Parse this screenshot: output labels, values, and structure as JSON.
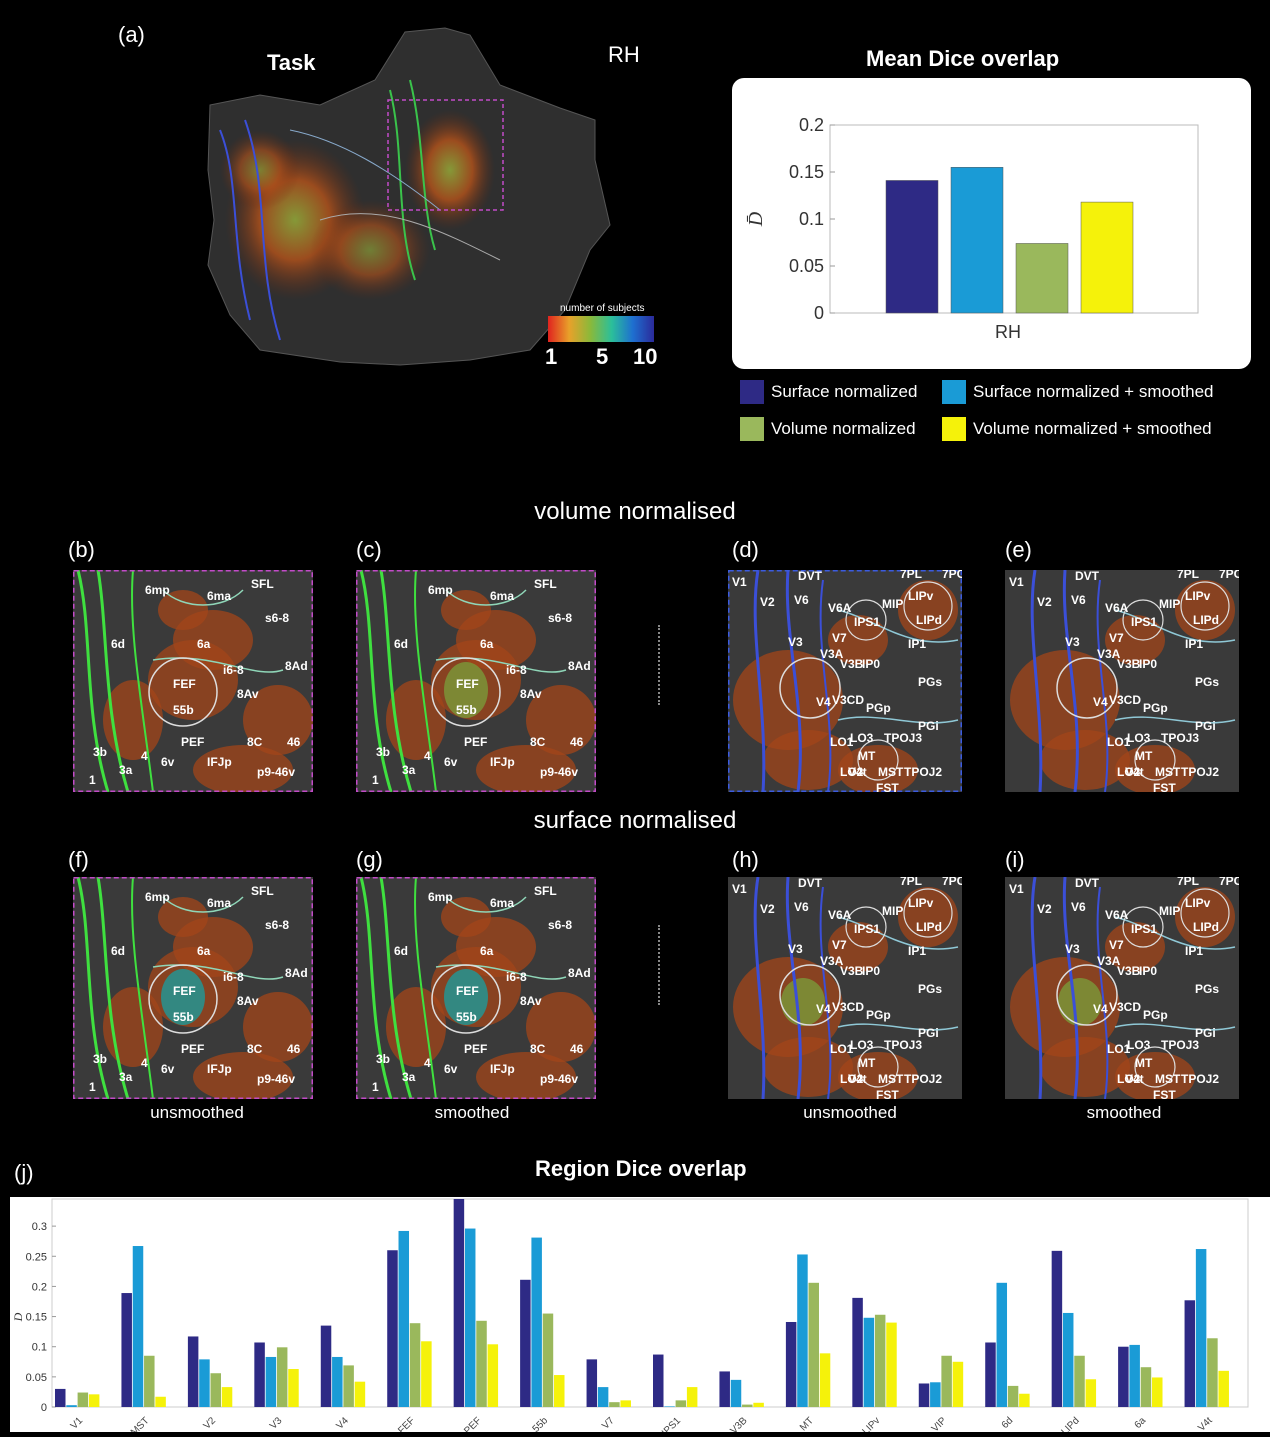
{
  "panel_labels": {
    "a": "(a)",
    "b": "(b)",
    "c": "(c)",
    "d": "(d)",
    "e": "(e)",
    "f": "(f)",
    "g": "(g)",
    "h": "(h)",
    "i": "(i)",
    "j": "(j)"
  },
  "task_title": "Task",
  "hemisphere": "RH",
  "colorbar": {
    "title": "number of subjects",
    "ticks": [
      "1",
      "5",
      "10"
    ]
  },
  "section_volume": "volume normalised",
  "section_surface": "surface normalised",
  "captions": {
    "unsmoothed": "unsmoothed",
    "smoothed": "smoothed"
  },
  "colors": {
    "surface": "#2e2a85",
    "surface_smoothed": "#1a9bd6",
    "volume": "#9ab85c",
    "volume_smoothed": "#f5f20a"
  },
  "legend": [
    "Surface normalized",
    "Surface normalized + smoothed",
    "Volume normalized",
    "Volume normalized + smoothed"
  ],
  "frontal_regions": [
    "6mp",
    "6ma",
    "SFL",
    "s6-8",
    "6d",
    "6a",
    "8Ad",
    "i6-8",
    "FEF",
    "55b",
    "8Av",
    "PEF",
    "8C",
    "46",
    "3b",
    "3a",
    "4",
    "6v",
    "IFJp",
    "p9-46v",
    "1"
  ],
  "visual_regions": [
    "V1",
    "DVT",
    "V2",
    "V6",
    "V6A",
    "7PL",
    "7PC",
    "MIP",
    "LIPv",
    "LIPd",
    "IPS1",
    "V7",
    "IP1",
    "V3",
    "V3A",
    "V3B",
    "IP0",
    "PGs",
    "V4",
    "V3CD",
    "PGp",
    "PGi",
    "LO1",
    "LO3",
    "TPOJ3",
    "MT",
    "LO2",
    "V4t",
    "MST",
    "TPOJ2",
    "FST"
  ],
  "chart_data": [
    {
      "type": "bar",
      "title": "Mean Dice overlap",
      "ylabel": "D̄",
      "categories": [
        "RH"
      ],
      "yticks": [
        "0",
        "0.05",
        "0.1",
        "0.15",
        "0.2"
      ],
      "ylim": [
        0,
        0.2
      ],
      "series": [
        {
          "name": "Surface normalized",
          "values": [
            0.141
          ]
        },
        {
          "name": "Surface normalized + smoothed",
          "values": [
            0.155
          ]
        },
        {
          "name": "Volume normalized",
          "values": [
            0.074
          ]
        },
        {
          "name": "Volume normalized + smoothed",
          "values": [
            0.118
          ]
        }
      ]
    },
    {
      "type": "bar",
      "title": "Region Dice overlap",
      "ylabel": "D",
      "yticks": [
        "0",
        "0.05",
        "0.1",
        "0.15",
        "0.2",
        "0.25",
        "0.3"
      ],
      "ylim": [
        0,
        0.345
      ],
      "categories": [
        "V1",
        "MST",
        "V2",
        "V3",
        "V4",
        "FEF",
        "PEF",
        "55b",
        "V7",
        "IPS1",
        "V3B",
        "MT",
        "LIPv",
        "VIP",
        "6d",
        "LIPd",
        "6a",
        "V4t"
      ],
      "series": [
        {
          "name": "Surface normalized",
          "values": [
            0.03,
            0.189,
            0.117,
            0.107,
            0.135,
            0.26,
            0.345,
            0.211,
            0.079,
            0.087,
            0.059,
            0.141,
            0.181,
            0.039,
            0.107,
            0.259,
            0.1,
            0.177
          ]
        },
        {
          "name": "Surface normalized + smoothed",
          "values": [
            0.003,
            0.267,
            0.079,
            0.083,
            0.083,
            0.292,
            0.296,
            0.281,
            0.033,
            0.001,
            0.045,
            0.253,
            0.148,
            0.041,
            0.206,
            0.156,
            0.103,
            0.262
          ]
        },
        {
          "name": "Volume normalized",
          "values": [
            0.024,
            0.085,
            0.056,
            0.099,
            0.069,
            0.139,
            0.143,
            0.155,
            0.008,
            0.011,
            0.004,
            0.206,
            0.153,
            0.085,
            0.035,
            0.085,
            0.066,
            0.114
          ]
        },
        {
          "name": "Volume normalized + smoothed",
          "values": [
            0.021,
            0.017,
            0.033,
            0.063,
            0.042,
            0.109,
            0.104,
            0.053,
            0.011,
            0.033,
            0.007,
            0.089,
            0.14,
            0.075,
            0.022,
            0.046,
            0.049,
            0.06
          ]
        }
      ]
    }
  ]
}
